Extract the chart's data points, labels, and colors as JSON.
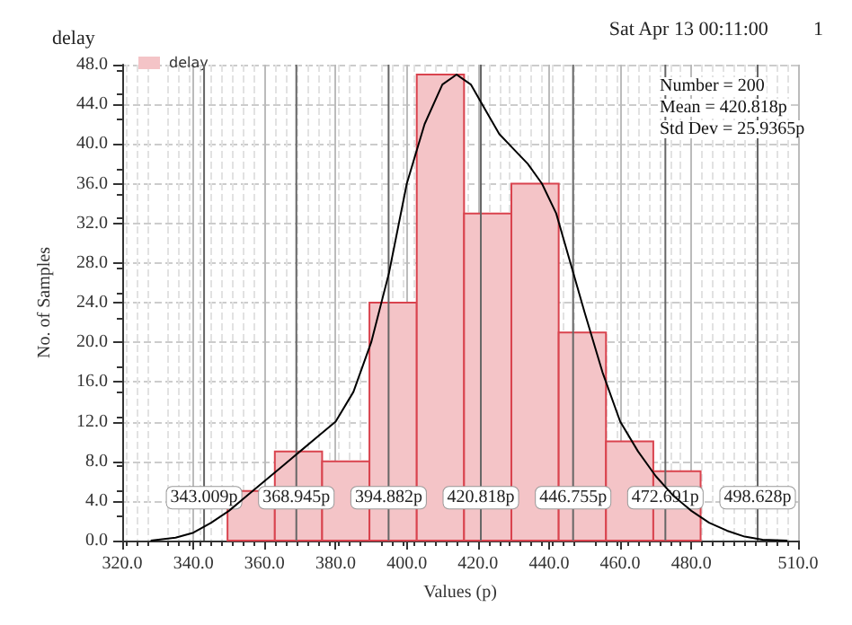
{
  "chart_data": {
    "type": "histogram",
    "title": "delay",
    "xlabel": "Values (p)",
    "ylabel": "No. of Samples",
    "annotations": [
      "Sat Apr 13 00:11:00",
      "1",
      "Number = 200",
      "Mean = 420.818p",
      "Std Dev = 25.9365p"
    ],
    "bins": [
      349.6,
      362.9,
      376.2,
      389.5,
      402.8,
      416.1,
      429.4,
      442.7,
      456.0,
      469.3,
      482.6
    ],
    "series": [
      {
        "name": "delay",
        "color": "#f4c4c7",
        "values": [
          5,
          9,
          8,
          24,
          47,
          33,
          36,
          21,
          10,
          7
        ]
      },
      {
        "type": "line",
        "color": "#000000",
        "x": [
          328,
          335,
          340,
          345,
          350,
          355,
          360,
          365,
          370,
          375,
          380,
          385,
          390,
          395,
          400,
          405,
          410,
          414,
          418,
          422,
          426,
          430,
          434,
          438,
          442,
          446,
          450,
          455,
          460,
          465,
          470,
          475,
          480,
          485,
          490,
          495,
          500,
          507
        ],
        "values": [
          0,
          0.3,
          0.8,
          1.8,
          3,
          4.5,
          6,
          7.5,
          9,
          10.5,
          12,
          15,
          20,
          27,
          36,
          42,
          46,
          47,
          46,
          43.5,
          41,
          39.5,
          38,
          36,
          33,
          28,
          23,
          17,
          12,
          9,
          6.5,
          4.5,
          3,
          1.8,
          1,
          0.4,
          0.1,
          0
        ]
      }
    ],
    "xlim": [
      320,
      510
    ],
    "xticks": [
      {
        "value": 320,
        "label": "320.0"
      },
      {
        "value": 340,
        "label": "340.0"
      },
      {
        "value": 360,
        "label": "360.0"
      },
      {
        "value": 380,
        "label": "380.0"
      },
      {
        "value": 400,
        "label": "400.0"
      },
      {
        "value": 420,
        "label": "420.0"
      },
      {
        "value": 440,
        "label": "440.0"
      },
      {
        "value": 460,
        "label": "460.0"
      },
      {
        "value": 480,
        "label": "480.0"
      },
      {
        "value": 510,
        "label": "510.0"
      }
    ],
    "ylim": [
      0,
      48
    ],
    "yticks": [
      {
        "value": 0,
        "label": "0.0"
      },
      {
        "value": 4,
        "label": "4.0"
      },
      {
        "value": 8,
        "label": "8.0"
      },
      {
        "value": 12,
        "label": "12.0"
      },
      {
        "value": 16,
        "label": "16.0"
      },
      {
        "value": 20,
        "label": "20.0"
      },
      {
        "value": 24,
        "label": "24.0"
      },
      {
        "value": 28,
        "label": "28.0"
      },
      {
        "value": 32,
        "label": "32.0"
      },
      {
        "value": 36,
        "label": "36.0"
      },
      {
        "value": 40,
        "label": "40.0"
      },
      {
        "value": 44,
        "label": "44.0"
      },
      {
        "value": 48,
        "label": "48.0"
      }
    ],
    "ref_lines": [
      {
        "axis": "x",
        "value": 343.009,
        "label": "343.009p"
      },
      {
        "axis": "x",
        "value": 368.945,
        "label": "368.945p"
      },
      {
        "axis": "x",
        "value": 394.882,
        "label": "394.882p"
      },
      {
        "axis": "x",
        "value": 420.818,
        "label": "420.818p"
      },
      {
        "axis": "x",
        "value": 446.755,
        "label": "446.755p"
      },
      {
        "axis": "x",
        "value": 472.691,
        "label": "472.691p"
      },
      {
        "axis": "x",
        "value": 498.628,
        "label": "498.628p"
      }
    ],
    "grid": true,
    "legend": "top left"
  }
}
